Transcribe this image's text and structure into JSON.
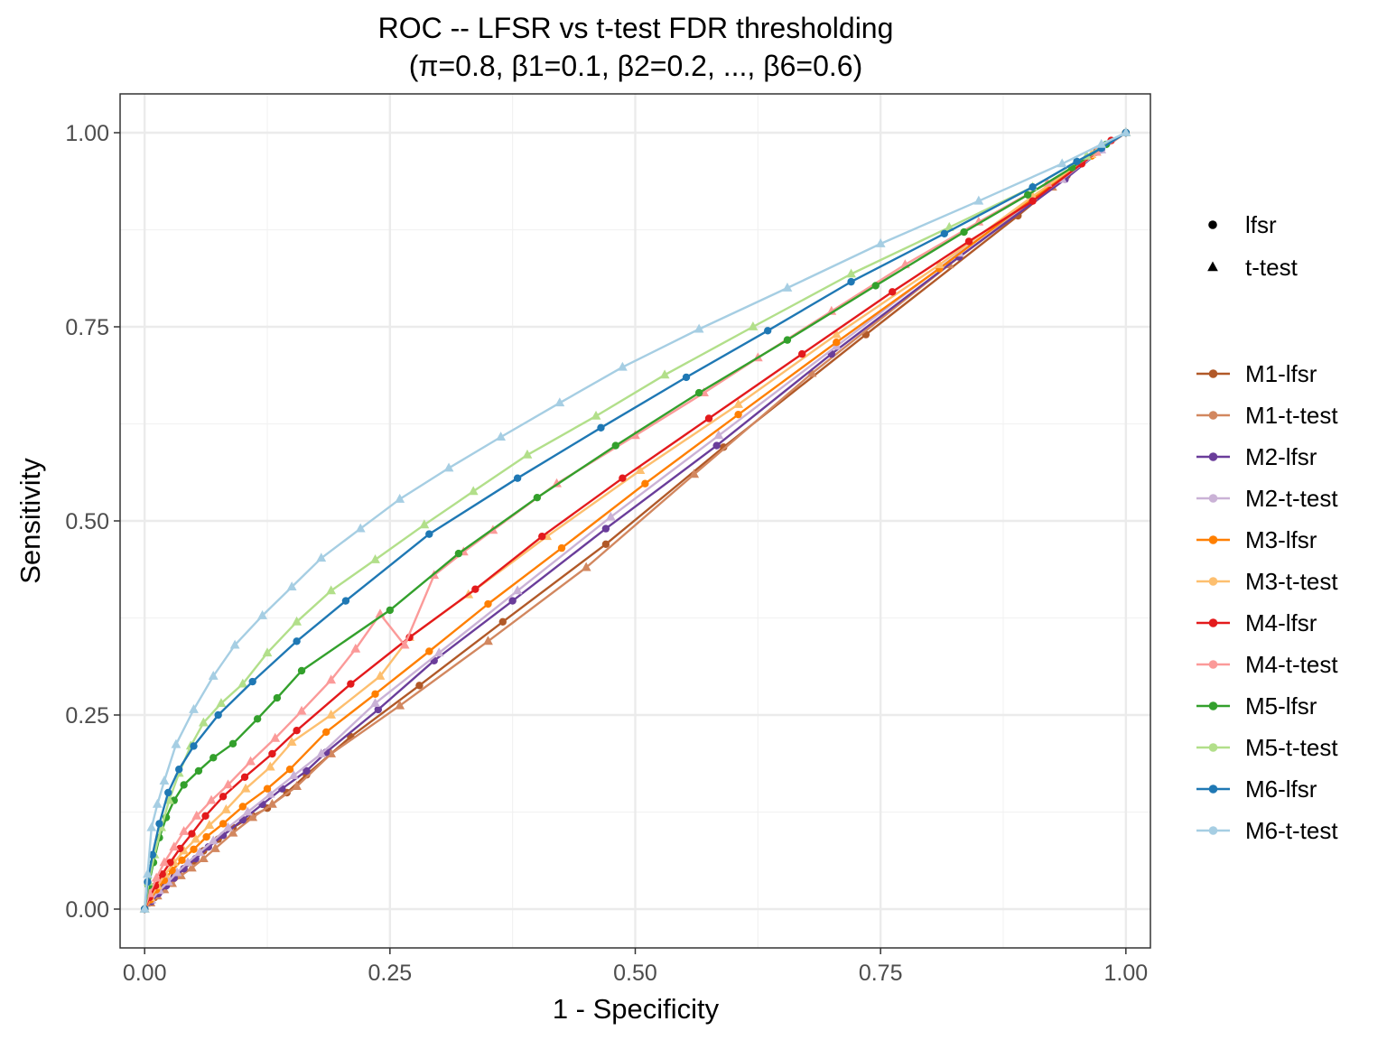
{
  "chart_data": {
    "type": "line",
    "title": "ROC -- LFSR vs t-test FDR thresholding",
    "subtitle": "(π=0.8, β1=0.1, β2=0.2, ..., β6=0.6)",
    "xlabel": "1 - Specificity",
    "ylabel": "Sensitivity",
    "xlim": [
      -0.025,
      1.025
    ],
    "ylim": [
      -0.05,
      1.05
    ],
    "x_ticks": [
      {
        "value": 0.0,
        "label": "0.00"
      },
      {
        "value": 0.25,
        "label": "0.25"
      },
      {
        "value": 0.5,
        "label": "0.50"
      },
      {
        "value": 0.75,
        "label": "0.75"
      },
      {
        "value": 1.0,
        "label": "1.00"
      }
    ],
    "y_ticks": [
      {
        "value": 0.0,
        "label": "0.00"
      },
      {
        "value": 0.25,
        "label": "0.25"
      },
      {
        "value": 0.5,
        "label": "0.50"
      },
      {
        "value": 0.75,
        "label": "0.75"
      },
      {
        "value": 1.0,
        "label": "1.00"
      }
    ],
    "grid": true,
    "legend_position": "right",
    "shape_legend": [
      {
        "label": "lfsr",
        "shape": "circle"
      },
      {
        "label": "t-test",
        "shape": "triangle"
      }
    ],
    "series": [
      {
        "name": "M1-lfsr",
        "color": "#b15928",
        "shape": "circle",
        "x": [
          0,
          0.005,
          0.01,
          0.015,
          0.02,
          0.025,
          0.03,
          0.04,
          0.05,
          0.06,
          0.075,
          0.09,
          0.11,
          0.125,
          0.145,
          0.165,
          0.21,
          0.28,
          0.365,
          0.47,
          0.59,
          0.735,
          0.89,
          0.94,
          0.97,
          1.0
        ],
        "y": [
          0,
          0.008,
          0.015,
          0.022,
          0.03,
          0.035,
          0.042,
          0.052,
          0.062,
          0.075,
          0.09,
          0.105,
          0.12,
          0.13,
          0.15,
          0.173,
          0.222,
          0.288,
          0.37,
          0.47,
          0.595,
          0.74,
          0.893,
          0.945,
          0.975,
          1.0
        ]
      },
      {
        "name": "M1-t-test",
        "color": "#d2875f",
        "shape": "triangle",
        "x": [
          0,
          0.006,
          0.013,
          0.02,
          0.028,
          0.037,
          0.048,
          0.06,
          0.072,
          0.09,
          0.11,
          0.13,
          0.155,
          0.19,
          0.26,
          0.35,
          0.45,
          0.56,
          0.68,
          0.82,
          0.925,
          0.97,
          1.0
        ],
        "y": [
          0,
          0.008,
          0.017,
          0.025,
          0.033,
          0.043,
          0.053,
          0.065,
          0.078,
          0.098,
          0.118,
          0.135,
          0.158,
          0.2,
          0.262,
          0.345,
          0.44,
          0.56,
          0.69,
          0.83,
          0.93,
          0.975,
          1.0
        ]
      },
      {
        "name": "M2-lfsr",
        "color": "#6a3d9a",
        "shape": "circle",
        "x": [
          0,
          0.007,
          0.014,
          0.022,
          0.03,
          0.04,
          0.052,
          0.065,
          0.08,
          0.1,
          0.12,
          0.14,
          0.165,
          0.185,
          0.238,
          0.295,
          0.375,
          0.47,
          0.583,
          0.7,
          0.83,
          0.938,
          0.975,
          1.0
        ],
        "y": [
          0,
          0.01,
          0.02,
          0.03,
          0.04,
          0.052,
          0.065,
          0.08,
          0.095,
          0.115,
          0.135,
          0.155,
          0.178,
          0.202,
          0.257,
          0.32,
          0.397,
          0.49,
          0.597,
          0.715,
          0.84,
          0.94,
          0.978,
          1.0
        ]
      },
      {
        "name": "M2-t-test",
        "color": "#cab2d6",
        "shape": "triangle",
        "x": [
          0,
          0.007,
          0.015,
          0.024,
          0.033,
          0.044,
          0.056,
          0.07,
          0.085,
          0.105,
          0.128,
          0.152,
          0.18,
          0.235,
          0.3,
          0.38,
          0.475,
          0.585,
          0.705,
          0.83,
          0.935,
          0.975,
          1.0
        ],
        "y": [
          0,
          0.012,
          0.024,
          0.035,
          0.047,
          0.06,
          0.073,
          0.088,
          0.105,
          0.125,
          0.148,
          0.172,
          0.2,
          0.265,
          0.33,
          0.41,
          0.505,
          0.61,
          0.725,
          0.845,
          0.94,
          0.978,
          1.0
        ]
      },
      {
        "name": "M3-lfsr",
        "color": "#ff7f00",
        "shape": "circle",
        "x": [
          0,
          0.006,
          0.012,
          0.02,
          0.028,
          0.038,
          0.05,
          0.063,
          0.08,
          0.1,
          0.125,
          0.148,
          0.185,
          0.235,
          0.29,
          0.35,
          0.425,
          0.51,
          0.605,
          0.705,
          0.81,
          0.905,
          0.965,
          1.0
        ],
        "y": [
          0,
          0.012,
          0.025,
          0.037,
          0.05,
          0.063,
          0.077,
          0.093,
          0.11,
          0.132,
          0.155,
          0.18,
          0.228,
          0.277,
          0.332,
          0.393,
          0.465,
          0.548,
          0.637,
          0.73,
          0.825,
          0.915,
          0.97,
          1.0
        ]
      },
      {
        "name": "M3-t-test",
        "color": "#fdbf6f",
        "shape": "triangle",
        "x": [
          0,
          0.006,
          0.013,
          0.021,
          0.03,
          0.04,
          0.052,
          0.066,
          0.083,
          0.103,
          0.128,
          0.15,
          0.19,
          0.24,
          0.27,
          0.33,
          0.41,
          0.505,
          0.605,
          0.705,
          0.81,
          0.905,
          0.965,
          1.0
        ],
        "y": [
          0,
          0.015,
          0.03,
          0.045,
          0.06,
          0.075,
          0.09,
          0.108,
          0.128,
          0.155,
          0.183,
          0.215,
          0.25,
          0.3,
          0.35,
          0.405,
          0.48,
          0.565,
          0.65,
          0.74,
          0.83,
          0.918,
          0.972,
          1.0
        ]
      },
      {
        "name": "M4-lfsr",
        "color": "#e31a1c",
        "shape": "circle",
        "x": [
          0,
          0.005,
          0.011,
          0.018,
          0.026,
          0.036,
          0.048,
          0.062,
          0.08,
          0.102,
          0.13,
          0.155,
          0.21,
          0.27,
          0.337,
          0.405,
          0.487,
          0.575,
          0.67,
          0.762,
          0.84,
          0.905,
          0.955,
          0.985,
          1.0
        ],
        "y": [
          0,
          0.015,
          0.03,
          0.045,
          0.06,
          0.078,
          0.097,
          0.12,
          0.145,
          0.17,
          0.2,
          0.23,
          0.29,
          0.35,
          0.412,
          0.48,
          0.555,
          0.632,
          0.715,
          0.795,
          0.86,
          0.912,
          0.96,
          0.99,
          1.0
        ]
      },
      {
        "name": "M4-t-test",
        "color": "#fb9a99",
        "shape": "triangle",
        "x": [
          0,
          0.005,
          0.012,
          0.02,
          0.03,
          0.04,
          0.053,
          0.068,
          0.085,
          0.108,
          0.133,
          0.16,
          0.19,
          0.215,
          0.24,
          0.265,
          0.295,
          0.325,
          0.355,
          0.42,
          0.5,
          0.57,
          0.625,
          0.7,
          0.775,
          0.85,
          0.92,
          0.97,
          1.0
        ],
        "y": [
          0,
          0.02,
          0.04,
          0.06,
          0.08,
          0.1,
          0.12,
          0.14,
          0.16,
          0.19,
          0.22,
          0.255,
          0.295,
          0.335,
          0.38,
          0.34,
          0.43,
          0.46,
          0.488,
          0.548,
          0.61,
          0.665,
          0.71,
          0.77,
          0.83,
          0.885,
          0.935,
          0.975,
          1.0
        ]
      },
      {
        "name": "M5-lfsr",
        "color": "#33a02c",
        "shape": "circle",
        "x": [
          0,
          0.004,
          0.009,
          0.015,
          0.022,
          0.03,
          0.04,
          0.055,
          0.07,
          0.09,
          0.115,
          0.135,
          0.16,
          0.25,
          0.32,
          0.4,
          0.48,
          0.565,
          0.655,
          0.745,
          0.835,
          0.9,
          0.945,
          0.98,
          1.0
        ],
        "y": [
          0,
          0.03,
          0.06,
          0.092,
          0.118,
          0.14,
          0.16,
          0.178,
          0.195,
          0.213,
          0.245,
          0.272,
          0.307,
          0.385,
          0.458,
          0.53,
          0.597,
          0.665,
          0.733,
          0.803,
          0.872,
          0.92,
          0.955,
          0.985,
          1.0
        ]
      },
      {
        "name": "M5-t-test",
        "color": "#b2df8a",
        "shape": "triangle",
        "x": [
          0,
          0.004,
          0.01,
          0.017,
          0.025,
          0.035,
          0.047,
          0.06,
          0.078,
          0.1,
          0.125,
          0.155,
          0.19,
          0.235,
          0.285,
          0.335,
          0.39,
          0.46,
          0.53,
          0.62,
          0.72,
          0.82,
          0.905,
          0.96,
          1.0
        ],
        "y": [
          0,
          0.035,
          0.07,
          0.105,
          0.14,
          0.175,
          0.21,
          0.24,
          0.265,
          0.29,
          0.33,
          0.37,
          0.41,
          0.45,
          0.495,
          0.538,
          0.585,
          0.635,
          0.688,
          0.75,
          0.818,
          0.878,
          0.93,
          0.97,
          1.0
        ]
      },
      {
        "name": "M6-lfsr",
        "color": "#1f78b4",
        "shape": "circle",
        "x": [
          0,
          0.003,
          0.008,
          0.015,
          0.024,
          0.035,
          0.05,
          0.075,
          0.11,
          0.155,
          0.205,
          0.29,
          0.38,
          0.465,
          0.552,
          0.635,
          0.72,
          0.815,
          0.905,
          0.95,
          0.975,
          1.0
        ],
        "y": [
          0,
          0.035,
          0.07,
          0.11,
          0.15,
          0.18,
          0.21,
          0.25,
          0.293,
          0.345,
          0.397,
          0.483,
          0.555,
          0.62,
          0.685,
          0.745,
          0.808,
          0.87,
          0.93,
          0.963,
          0.98,
          1.0
        ]
      },
      {
        "name": "M6-t-test",
        "color": "#a6cee3",
        "shape": "triangle",
        "x": [
          0,
          0.003,
          0.007,
          0.013,
          0.02,
          0.032,
          0.05,
          0.07,
          0.092,
          0.12,
          0.15,
          0.18,
          0.22,
          0.26,
          0.31,
          0.363,
          0.423,
          0.487,
          0.565,
          0.655,
          0.75,
          0.85,
          0.935,
          0.975,
          1.0
        ],
        "y": [
          0,
          0.045,
          0.105,
          0.135,
          0.165,
          0.212,
          0.257,
          0.3,
          0.34,
          0.378,
          0.415,
          0.452,
          0.49,
          0.528,
          0.568,
          0.608,
          0.652,
          0.698,
          0.747,
          0.8,
          0.857,
          0.912,
          0.96,
          0.985,
          1.0
        ]
      }
    ]
  }
}
